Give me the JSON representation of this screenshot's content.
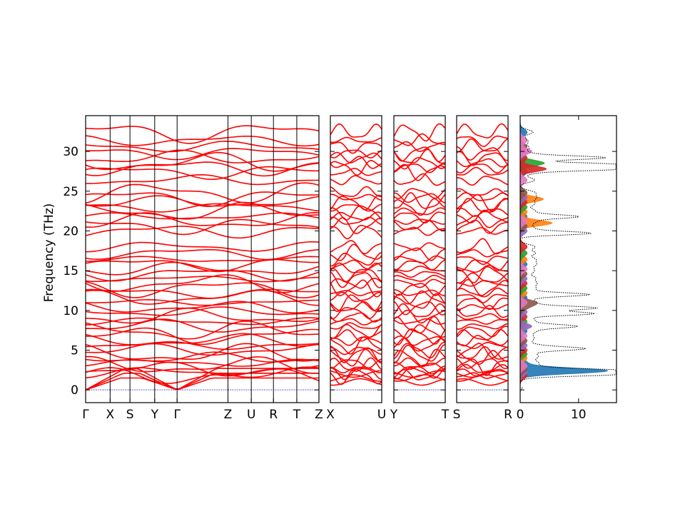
{
  "chart_data": {
    "type": "line",
    "title": "",
    "ylabel": "Frequency (THz)",
    "ylim": [
      -1.6,
      34.5
    ],
    "yticks": [
      0,
      5,
      10,
      15,
      20,
      25,
      30
    ],
    "band_color": "#ff0000",
    "zero_line_color": "#0000cc",
    "panels": [
      {
        "kind": "band",
        "labels": [
          "Γ",
          "X",
          "S",
          "Y",
          "Γ",
          "Z",
          "U",
          "R",
          "T",
          "Z"
        ],
        "label_pos": [
          0,
          0.105,
          0.19,
          0.296,
          0.392,
          0.61,
          0.71,
          0.805,
          0.905,
          1.0
        ]
      },
      {
        "kind": "band",
        "labels": [
          "X",
          "U"
        ],
        "label_pos": [
          0,
          1
        ]
      },
      {
        "kind": "band",
        "labels": [
          "Y",
          "T"
        ],
        "label_pos": [
          0,
          1
        ]
      },
      {
        "kind": "band",
        "labels": [
          "S",
          "R"
        ],
        "label_pos": [
          0,
          1
        ]
      },
      {
        "kind": "dos",
        "xticks": [
          0,
          10
        ],
        "xlim": [
          0,
          16.5
        ],
        "total_color": "#000000",
        "partial_colors": [
          "#1f77b4",
          "#ff7f0e",
          "#2ca02c",
          "#d62728",
          "#9467bd",
          "#8c564b",
          "#e377c2"
        ]
      }
    ],
    "band_frequencies_at_gamma": [
      0,
      0,
      0,
      1.8,
      2.2,
      2.6,
      3.0,
      3.4,
      4.0,
      4.5,
      5.0,
      5.6,
      6.2,
      6.8,
      7.4,
      8.0,
      8.6,
      9.2,
      9.8,
      10.4,
      11.0,
      11.6,
      12.2,
      12.8,
      13.4,
      14.0,
      14.6,
      15.2,
      15.8,
      16.4,
      17.2,
      18.0,
      20.0,
      20.6,
      21.2,
      21.8,
      22.4,
      23.0,
      23.6,
      24.2,
      24.8,
      26.4,
      27.4,
      28.0,
      28.6,
      29.2,
      29.8,
      30.6,
      31.4,
      32.4
    ],
    "dos_total_peaks": [
      {
        "f": 2.4,
        "v": 15.2
      },
      {
        "f": 2.0,
        "v": 14.0
      },
      {
        "f": 5.2,
        "v": 8.4
      },
      {
        "f": 8.0,
        "v": 7.0
      },
      {
        "f": 9.6,
        "v": 10.2
      },
      {
        "f": 10.3,
        "v": 10.4
      },
      {
        "f": 12.0,
        "v": 9.6
      },
      {
        "f": 19.7,
        "v": 11.5
      },
      {
        "f": 21.8,
        "v": 7.2
      },
      {
        "f": 27.8,
        "v": 15.0
      },
      {
        "f": 28.3,
        "v": 16.0
      },
      {
        "f": 29.2,
        "v": 12.5
      }
    ],
    "dos_partial_peaks": [
      {
        "series": 0,
        "f": 2.4,
        "v": 15.0
      },
      {
        "series": 1,
        "f": 21.0,
        "v": 5.5
      },
      {
        "series": 1,
        "f": 24.0,
        "v": 4.0
      },
      {
        "series": 2,
        "f": 28.5,
        "v": 3.0
      },
      {
        "series": 3,
        "f": 27.8,
        "v": 4.5
      },
      {
        "series": 4,
        "f": 8.0,
        "v": 2.0
      },
      {
        "series": 5,
        "f": 11.0,
        "v": 2.5
      },
      {
        "series": 6,
        "f": 30.0,
        "v": 2.0
      }
    ]
  }
}
